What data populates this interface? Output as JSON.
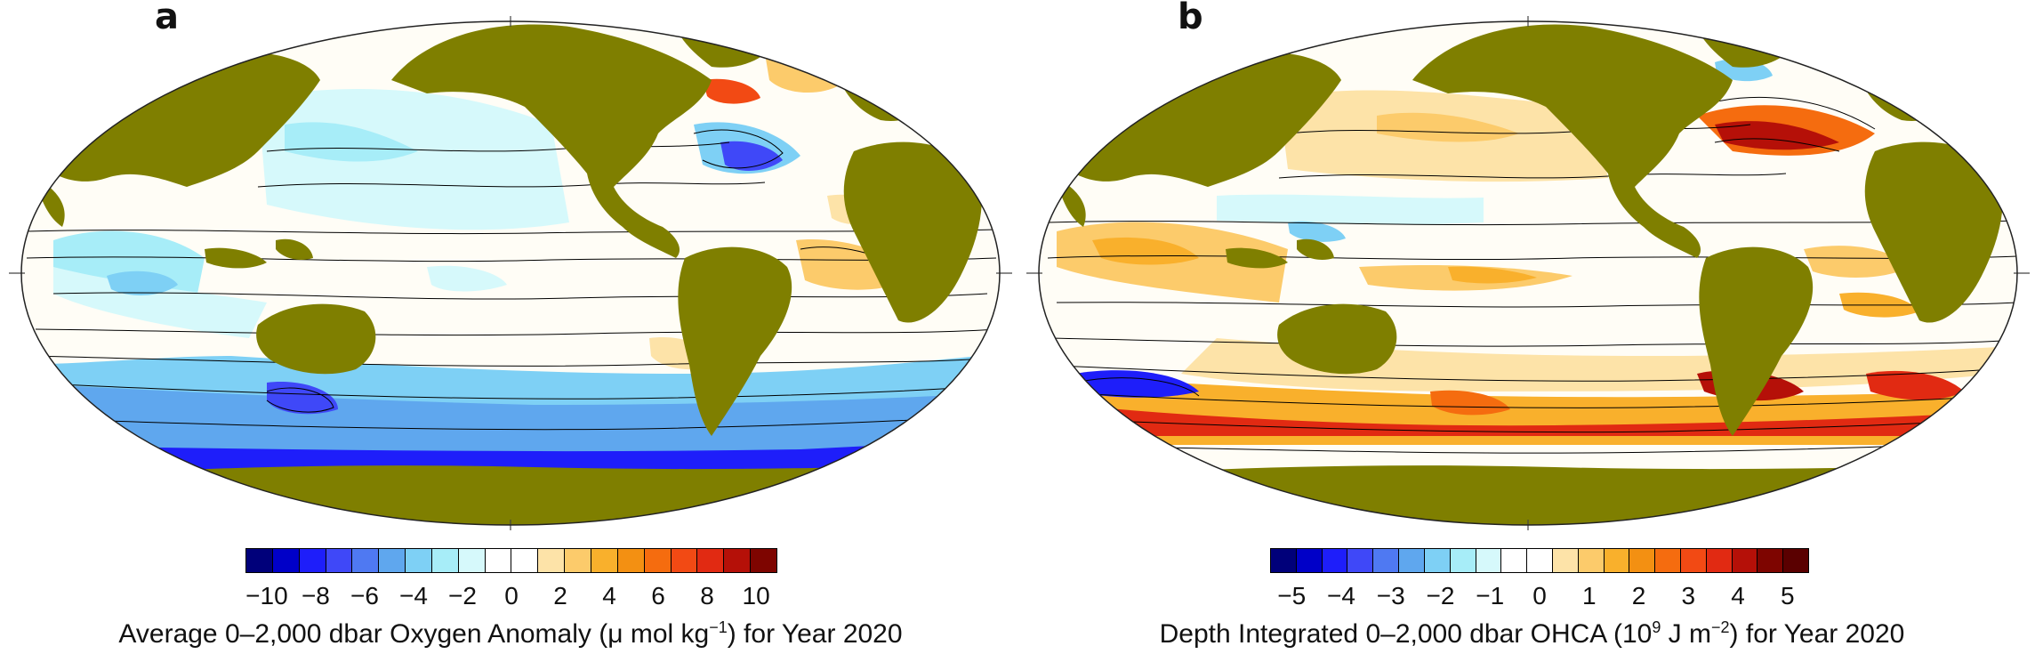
{
  "panels": {
    "a": {
      "letter": "a",
      "colorbar_colors": [
        "#00007a",
        "#0000c8",
        "#1e1efa",
        "#3f48f8",
        "#4f79f2",
        "#5fa7ee",
        "#7ed0f5",
        "#a7edf8",
        "#d6f9fb",
        "#ffffff",
        "#ffffff",
        "#fde3a8",
        "#fccb6b",
        "#f9b02c",
        "#f39012",
        "#f56c0f",
        "#f24a14",
        "#e12a12",
        "#b51008",
        "#7e0500"
      ],
      "tick_labels": [
        "−10",
        "−8",
        "−6",
        "−4",
        "−2",
        "0",
        "2",
        "4",
        "6",
        "8",
        "10"
      ],
      "caption": {
        "pre": "Average 0–2,000 dbar Oxygen Anomaly (μ mol kg",
        "sup": "−1",
        "post": ") for Year 2020"
      }
    },
    "b": {
      "letter": "b",
      "colorbar_colors": [
        "#00007a",
        "#0000c8",
        "#1e1efa",
        "#3f48f8",
        "#4f79f2",
        "#5fa7ee",
        "#7ed0f5",
        "#a7edf8",
        "#d6f9fb",
        "#ffffff",
        "#ffffff",
        "#fde3a8",
        "#fccb6b",
        "#f9b02c",
        "#f39012",
        "#f56c0f",
        "#f24a14",
        "#e12a12",
        "#b51008",
        "#7e0500",
        "#5a0000"
      ],
      "tick_labels": [
        "−5",
        "−4",
        "−3",
        "−2",
        "−1",
        "0",
        "1",
        "2",
        "3",
        "4",
        "5"
      ],
      "caption": {
        "pre": "Depth Integrated 0–2,000 dbar OHCA (10",
        "sup": "9",
        "mid": " J m",
        "sup2": "−2",
        "post": ") for Year 2020"
      }
    }
  },
  "colors": {
    "land": "#7f7f00",
    "ocean_background": "#fffbf0",
    "contour": "#000000"
  }
}
